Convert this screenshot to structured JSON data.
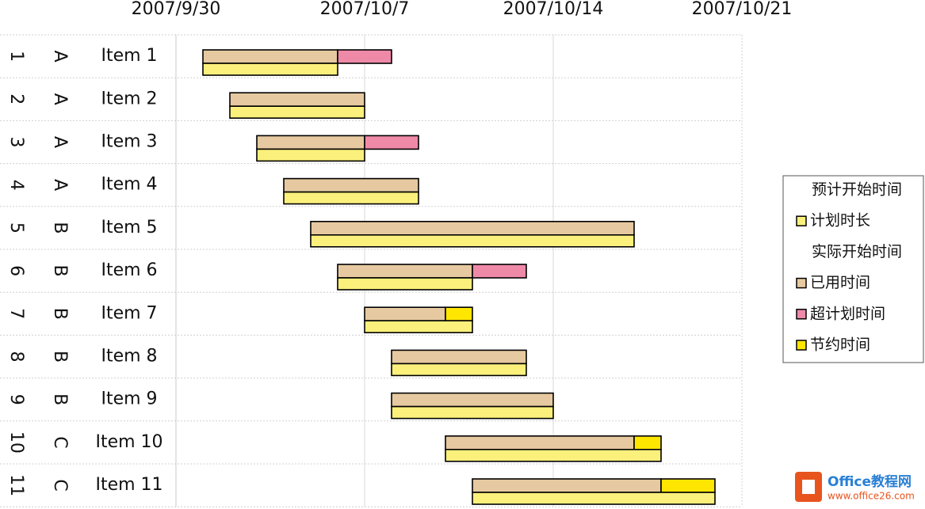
{
  "chart_data": {
    "type": "gantt",
    "categories": [
      "Item 1",
      "Item 2",
      "Item 3",
      "Item 4",
      "Item 5",
      "Item 6",
      "Item 7",
      "Item 8",
      "Item 9",
      "Item 10",
      "Item 11"
    ],
    "category_numbers": [
      "1",
      "2",
      "3",
      "4",
      "5",
      "6",
      "7",
      "8",
      "9",
      "10",
      "11"
    ],
    "category_groups": [
      "A",
      "A",
      "A",
      "A",
      "B",
      "B",
      "B",
      "B",
      "B",
      "C",
      "C"
    ],
    "series": [
      {
        "name": "预计开始时间",
        "color": null,
        "values": [
          39356,
          39357,
          39358,
          39359,
          39360,
          39361,
          39362,
          39363,
          39363,
          39365,
          39366
        ]
      },
      {
        "name": "计划时长",
        "color": "#fbf07c",
        "values": [
          5,
          5,
          4,
          5,
          12,
          5,
          4,
          5,
          6,
          8,
          9
        ]
      },
      {
        "name": "实际开始时间",
        "color": null,
        "values": [
          39356,
          39357,
          39358,
          39359,
          39360,
          39361,
          39362,
          39363,
          39363,
          39365,
          39366
        ]
      },
      {
        "name": "已用时间",
        "color": "#e6c9a0",
        "values": [
          5,
          5,
          4,
          5,
          12,
          5,
          3,
          5,
          6,
          7,
          7
        ]
      },
      {
        "name": "超计划时间",
        "color": "#ef89a8",
        "values": [
          2,
          0,
          2,
          0,
          0,
          2,
          0,
          0,
          0,
          0,
          0
        ]
      },
      {
        "name": "节约时间",
        "color": "#ffe600",
        "values": [
          0,
          0,
          0,
          0,
          0,
          0,
          1,
          0,
          0,
          1,
          2
        ]
      }
    ],
    "xlim": [
      39355,
      39376
    ],
    "xticks": [
      {
        "value": 39355,
        "label": "2007/9/30"
      },
      {
        "value": 39362,
        "label": "2007/10/7"
      },
      {
        "value": 39369,
        "label": "2007/10/14"
      },
      {
        "value": 39376,
        "label": "2007/10/21"
      }
    ],
    "grid": true,
    "legend": "right"
  },
  "watermark": {
    "title": "Office教程网",
    "url": "www.office26.com"
  }
}
